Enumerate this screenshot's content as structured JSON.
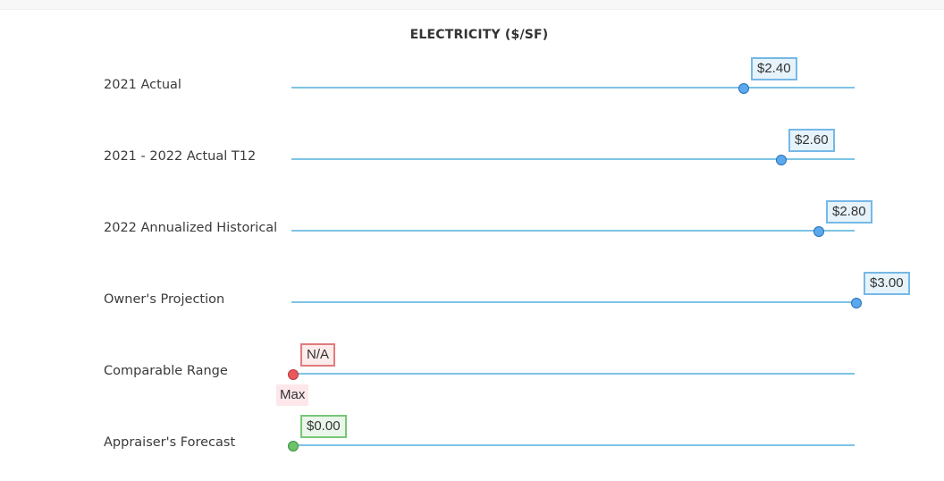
{
  "title": "ELECTRICITY ($/SF)",
  "scale": {
    "min": 0,
    "max": 3
  },
  "colors": {
    "track": "#7dc4e4",
    "blue_thumb_fill": "#5aa9ee",
    "blue_thumb_border": "#2a6fb5",
    "blue_tip_bg": "#e6f3fb",
    "blue_tip_border": "#76b8e6",
    "red_thumb_fill": "#e8595b",
    "red_thumb_border": "#b83a3c",
    "red_tip_bg": "#fdecec",
    "red_tip_border": "#e07b7c",
    "green_thumb_fill": "#6cc36c",
    "green_thumb_border": "#3f8f3f",
    "green_tip_bg": "#eaf6ea",
    "green_tip_border": "#78c678",
    "max_label_bg": "#fde7ea"
  },
  "rows": [
    {
      "label": "2021 Actual",
      "value": 2.4,
      "display": "$2.40",
      "theme": "blue"
    },
    {
      "label": "2021 - 2022 Actual T12",
      "value": 2.6,
      "display": "$2.60",
      "theme": "blue"
    },
    {
      "label": "2022 Annualized Historical",
      "value": 2.8,
      "display": "$2.80",
      "theme": "blue"
    },
    {
      "label": "Owner's Projection",
      "value": 3.0,
      "display": "$3.00",
      "theme": "blue"
    },
    {
      "label": "Comparable Range",
      "value": 0,
      "display": "N/A",
      "theme": "red",
      "sublabel": "Max"
    },
    {
      "label": "Appraiser's Forecast",
      "value": 0,
      "display": "$0.00",
      "theme": "green"
    }
  ]
}
